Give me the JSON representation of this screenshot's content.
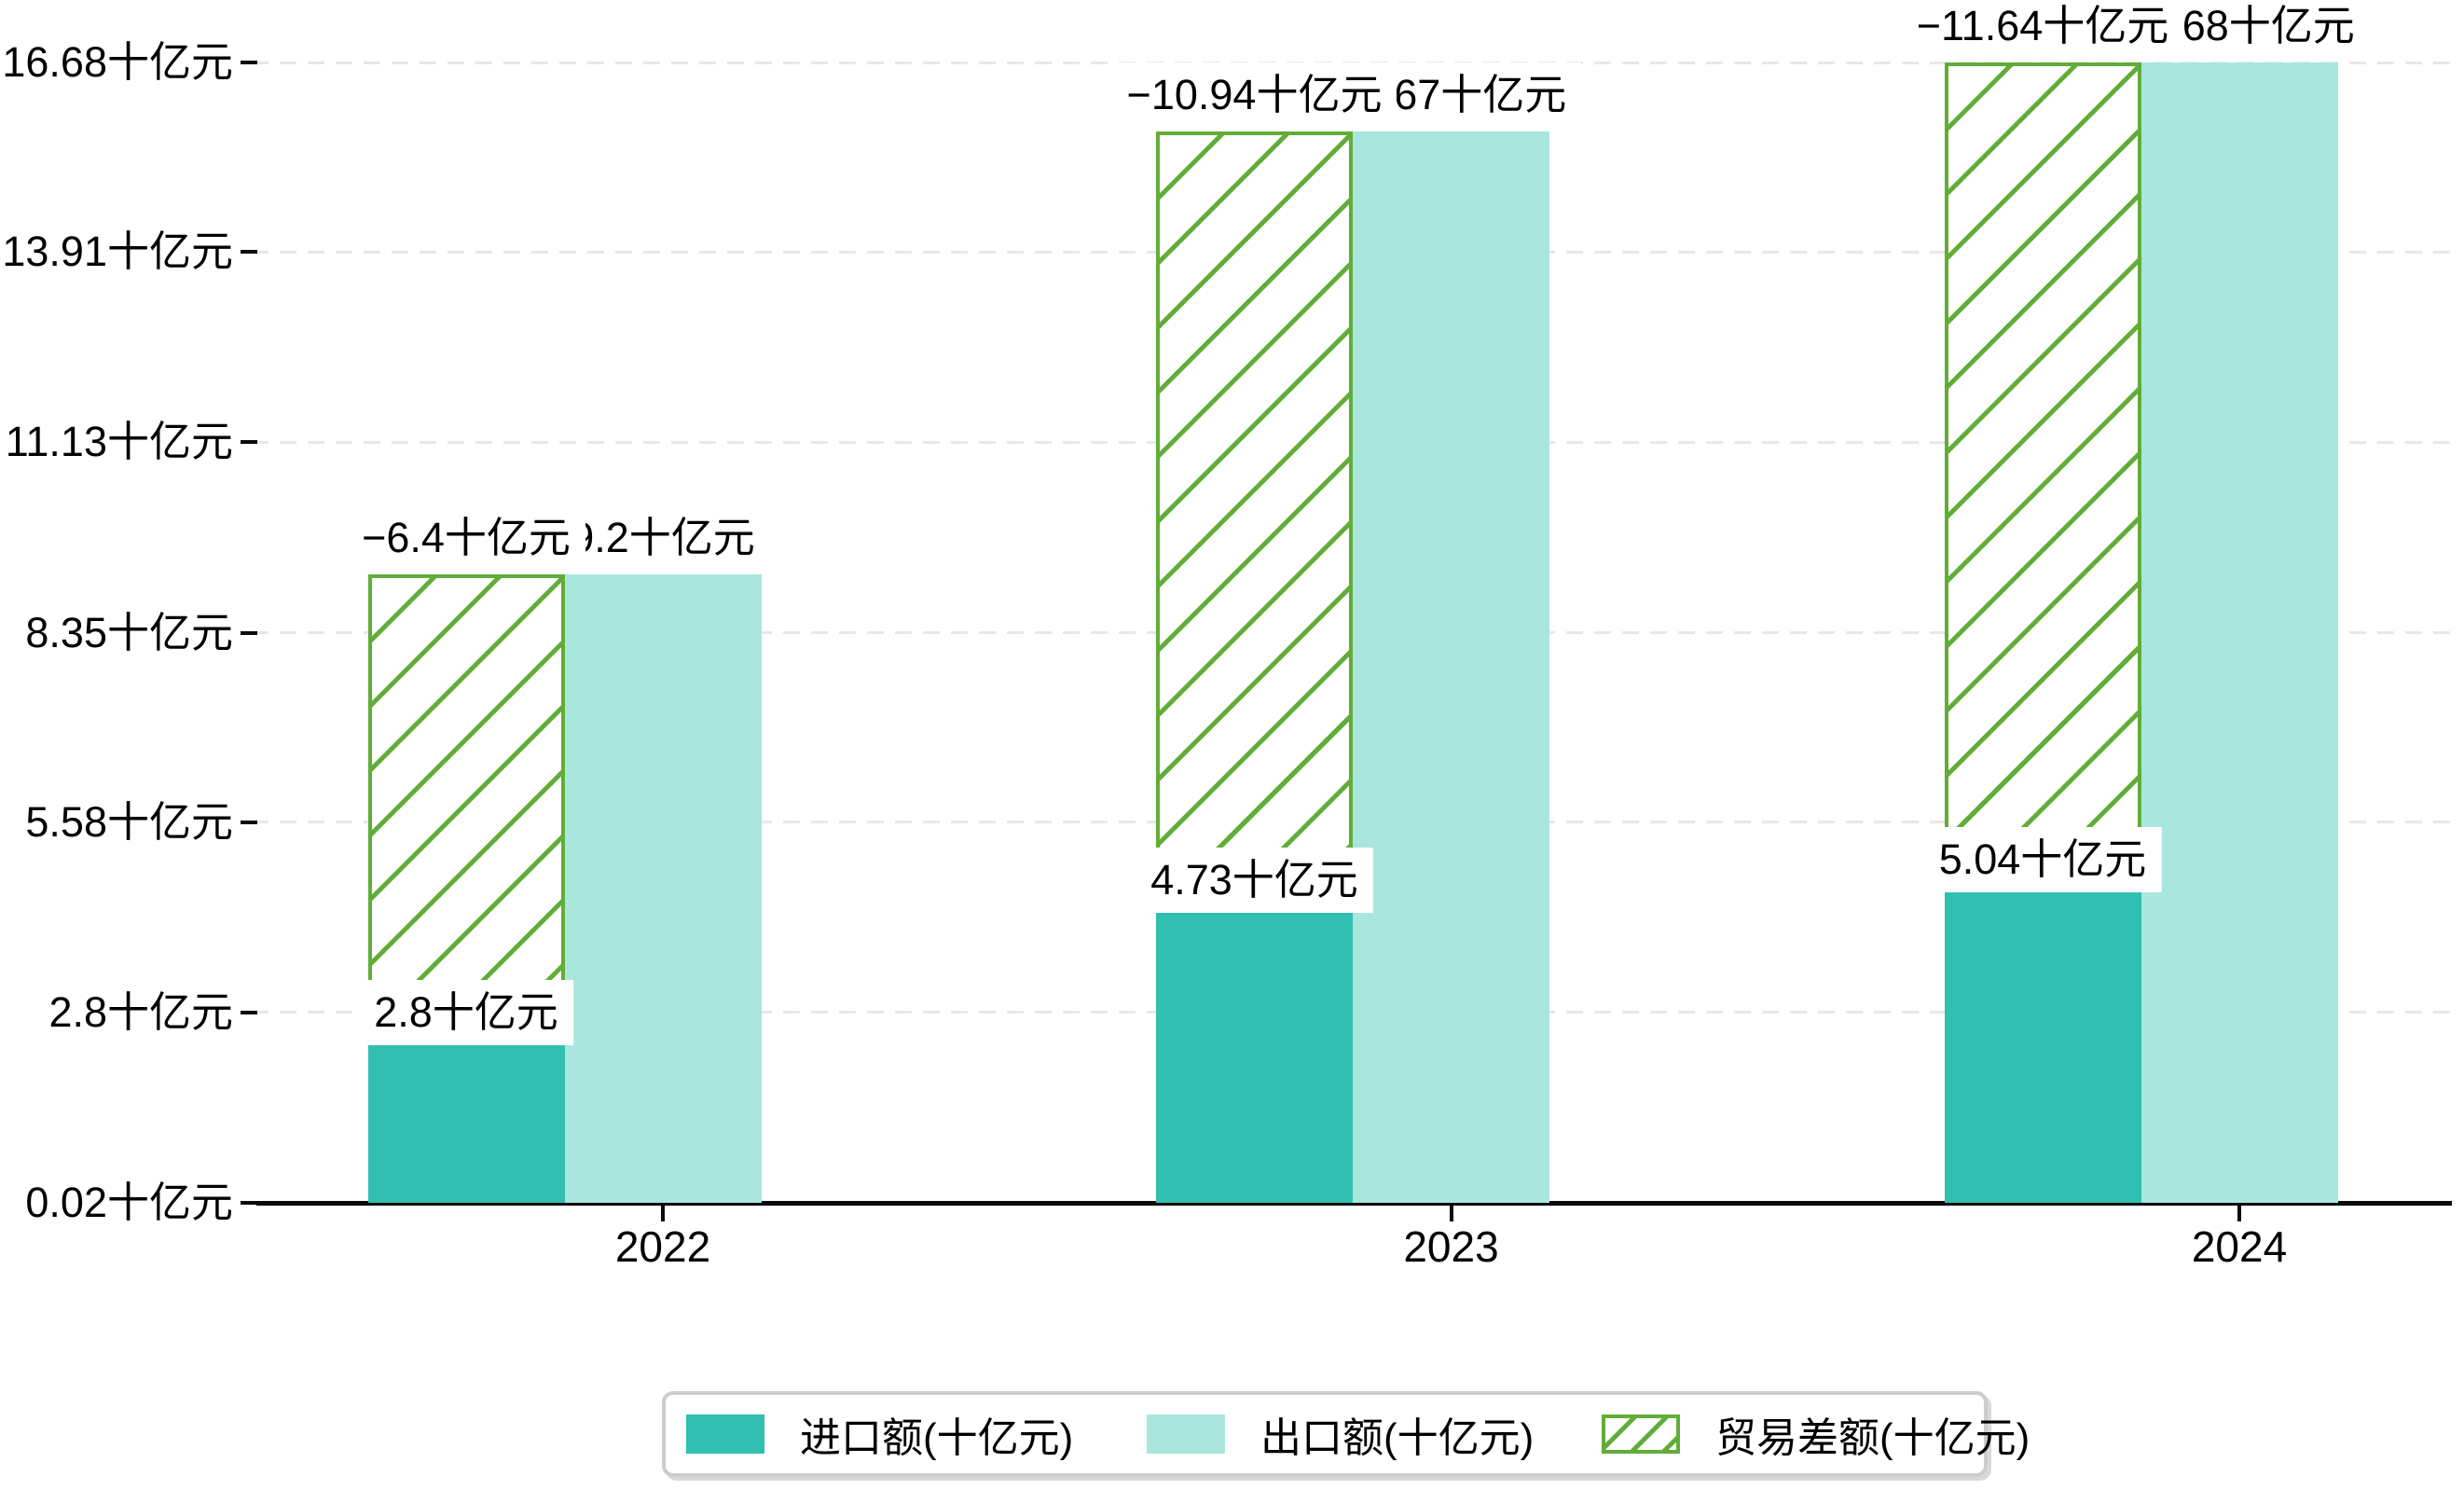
{
  "chart_data": {
    "type": "bar",
    "title": "",
    "categories": [
      "2022",
      "2023",
      "2024"
    ],
    "unit": "十亿元",
    "series": [
      {
        "name": "进口额(十亿元)",
        "values": [
          2.8,
          4.73,
          5.04
        ],
        "color": "#30bfb1",
        "style": "solid"
      },
      {
        "name": "出口额(十亿元)",
        "values": [
          9.2,
          15.67,
          16.68
        ],
        "color": "#a9e7de",
        "style": "solid"
      },
      {
        "name": "贸易差额(十亿元)",
        "values": [
          -6.4,
          -10.94,
          -11.64
        ],
        "color": "#61ad38",
        "style": "hatched",
        "note": "drawn as floating hatched bar spanning from import value up to export value, over the import column"
      }
    ],
    "bar_labels": {
      "import": [
        "2.8十亿元",
        "4.73十亿元",
        "5.04十亿元"
      ],
      "export": [
        "9.2十亿元",
        "15.67十亿元",
        "16.68十亿元"
      ],
      "balance": [
        "−6.4十亿元",
        "−10.94十亿元",
        "−11.64十亿元"
      ]
    },
    "y_axis": {
      "ylim": [
        0.02,
        16.68
      ],
      "grid": "horizontal-dashed",
      "ticks": [
        {
          "value": 0.02,
          "label": "0.02十亿元"
        },
        {
          "value": 2.8,
          "label": "2.8十亿元"
        },
        {
          "value": 5.58,
          "label": "5.58十亿元"
        },
        {
          "value": 8.35,
          "label": "8.35十亿元"
        },
        {
          "value": 11.13,
          "label": "11.13十亿元"
        },
        {
          "value": 13.91,
          "label": "13.91十亿元"
        },
        {
          "value": 16.68,
          "label": "16.68十亿元"
        }
      ]
    },
    "legend": {
      "position": "bottom-center",
      "items": [
        "进口额(十亿元)",
        "出口额(十亿元)",
        "贸易差额(十亿元)"
      ]
    },
    "colors": {
      "import": "#30bfb1",
      "export": "#a9e7de",
      "balance_green": "#61ad38",
      "gridline": "#e8e8e8",
      "axis": "#0a0a0a",
      "label_background": "#ffffff",
      "legend_border": "#cdcdcd"
    }
  }
}
